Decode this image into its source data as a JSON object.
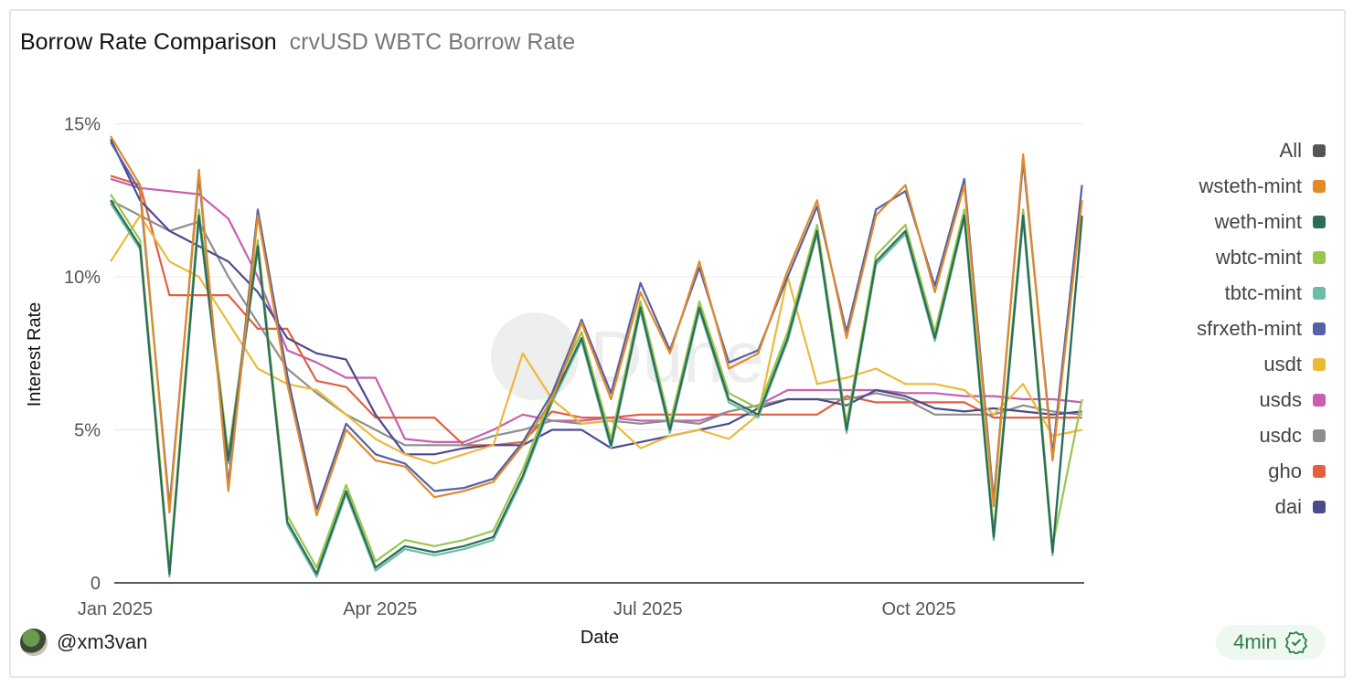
{
  "header": {
    "title": "Borrow Rate Comparison",
    "subtitle": "crvUSD WBTC Borrow Rate"
  },
  "footer": {
    "author": "@xm3van",
    "refresh": "4min"
  },
  "chart_data": {
    "type": "line",
    "xlabel": "Date",
    "ylabel": "Interest Rate",
    "x_start": "2025-01-01",
    "x_step_days": 10,
    "x_ticks": [
      {
        "label": "Jan 2025",
        "day": 0
      },
      {
        "label": "Apr 2025",
        "day": 90
      },
      {
        "label": "Jul 2025",
        "day": 181
      },
      {
        "label": "Oct 2025",
        "day": 273
      }
    ],
    "y_ticks": [
      {
        "label": "0",
        "v": 0
      },
      {
        "label": "5%",
        "v": 5
      },
      {
        "label": "10%",
        "v": 10
      },
      {
        "label": "15%",
        "v": 15
      }
    ],
    "ylim": [
      0,
      15.5
    ],
    "legend_position": "right",
    "legend": [
      {
        "name": "All",
        "color": "#555555"
      },
      {
        "name": "wsteth-mint",
        "color": "#e08a2b"
      },
      {
        "name": "weth-mint",
        "color": "#2d6b5a"
      },
      {
        "name": "wbtc-mint",
        "color": "#97c74a"
      },
      {
        "name": "tbtc-mint",
        "color": "#6bbea3"
      },
      {
        "name": "sfrxeth-mint",
        "color": "#5560a8"
      },
      {
        "name": "usdt",
        "color": "#ecb93a"
      },
      {
        "name": "usds",
        "color": "#c95eb0"
      },
      {
        "name": "usdc",
        "color": "#8e8e8e"
      },
      {
        "name": "gho",
        "color": "#e35f3e"
      },
      {
        "name": "dai",
        "color": "#4b4a8f"
      }
    ],
    "series": [
      {
        "name": "usds",
        "color": "#c95eb0",
        "values": [
          13.2,
          12.9,
          12.8,
          12.7,
          11.9,
          10.0,
          7.6,
          7.2,
          6.7,
          6.7,
          4.7,
          4.6,
          4.6,
          5.0,
          5.5,
          5.3,
          5.3,
          5.4,
          5.3,
          5.3,
          5.3,
          5.6,
          5.8,
          6.3,
          6.3,
          6.3,
          6.3,
          6.2,
          6.2,
          6.1,
          6.1,
          6.0,
          6.0,
          5.9
        ]
      },
      {
        "name": "gho",
        "color": "#e35f3e",
        "values": [
          13.3,
          13.0,
          9.4,
          9.4,
          9.4,
          8.3,
          8.3,
          6.6,
          6.4,
          5.4,
          5.4,
          5.4,
          4.5,
          4.5,
          4.6,
          5.6,
          5.4,
          5.4,
          5.5,
          5.5,
          5.5,
          5.5,
          5.5,
          5.5,
          5.5,
          6.1,
          5.9,
          5.9,
          5.9,
          5.9,
          5.4,
          5.4,
          5.4,
          5.4
        ]
      },
      {
        "name": "usdc",
        "color": "#8e8e8e",
        "values": [
          12.5,
          12.0,
          11.5,
          11.8,
          10.0,
          8.5,
          7.0,
          6.2,
          5.5,
          5.0,
          4.5,
          4.5,
          4.5,
          4.8,
          5.0,
          5.3,
          5.2,
          5.3,
          5.2,
          5.3,
          5.2,
          5.6,
          5.8,
          6.0,
          6.0,
          6.0,
          6.2,
          6.0,
          5.5,
          5.5,
          5.5,
          5.8,
          5.6,
          5.5
        ]
      },
      {
        "name": "dai",
        "color": "#4b4a8f",
        "values": [
          14.5,
          12.5,
          11.5,
          11.0,
          10.5,
          9.5,
          8.0,
          7.5,
          7.3,
          5.5,
          4.2,
          4.2,
          4.4,
          4.5,
          4.5,
          5.0,
          5.0,
          4.4,
          4.6,
          4.8,
          5.0,
          5.2,
          5.7,
          6.0,
          6.0,
          5.8,
          6.3,
          6.1,
          5.7,
          5.6,
          5.7,
          5.6,
          5.5,
          5.6
        ]
      },
      {
        "name": "usdt",
        "color": "#ecb93a",
        "values": [
          10.5,
          12.0,
          10.5,
          10.0,
          8.5,
          7.0,
          6.5,
          6.3,
          5.5,
          4.7,
          4.2,
          3.9,
          4.2,
          4.5,
          7.5,
          6.0,
          5.2,
          5.3,
          4.4,
          4.8,
          5.0,
          4.7,
          5.5,
          10.0,
          6.5,
          6.7,
          7.0,
          6.5,
          6.5,
          6.3,
          5.5,
          6.5,
          4.8,
          5.0
        ]
      },
      {
        "name": "tbtc-mint",
        "color": "#6bbea3",
        "values": [
          12.4,
          10.9,
          0.2,
          11.9,
          3.9,
          10.9,
          1.9,
          0.2,
          2.9,
          0.4,
          1.1,
          0.9,
          1.1,
          1.4,
          3.4,
          5.9,
          7.9,
          4.4,
          8.9,
          4.9,
          8.9,
          5.9,
          5.4,
          7.9,
          11.4,
          4.9,
          10.4,
          11.4,
          7.9,
          11.9,
          1.4,
          11.9,
          0.9,
          11.9
        ]
      },
      {
        "name": "wbtc-mint",
        "color": "#97c74a",
        "values": [
          12.7,
          11.2,
          0.5,
          12.2,
          4.2,
          11.2,
          2.2,
          0.5,
          3.2,
          0.7,
          1.4,
          1.2,
          1.4,
          1.7,
          3.7,
          6.2,
          8.2,
          4.7,
          9.2,
          5.2,
          9.2,
          6.2,
          5.7,
          8.2,
          11.7,
          5.2,
          10.7,
          11.7,
          8.2,
          12.2,
          1.7,
          12.2,
          1.2,
          6.0
        ]
      },
      {
        "name": "weth-mint",
        "color": "#2d6b5a",
        "values": [
          12.5,
          11.0,
          0.3,
          12.0,
          4.0,
          11.0,
          2.0,
          0.3,
          3.0,
          0.5,
          1.2,
          1.0,
          1.2,
          1.5,
          3.5,
          6.0,
          8.0,
          4.5,
          9.0,
          5.0,
          9.0,
          6.0,
          5.5,
          8.0,
          11.5,
          5.0,
          10.5,
          11.5,
          8.0,
          12.0,
          1.5,
          12.0,
          1.0,
          12.0
        ]
      },
      {
        "name": "sfrxeth-mint",
        "color": "#5560a8",
        "values": [
          14.4,
          12.8,
          2.5,
          13.3,
          3.2,
          12.2,
          6.8,
          2.4,
          5.2,
          4.2,
          3.9,
          3.0,
          3.1,
          3.4,
          4.6,
          6.2,
          8.6,
          6.2,
          9.8,
          7.6,
          10.3,
          7.2,
          7.6,
          10.0,
          12.3,
          8.2,
          12.2,
          12.8,
          9.7,
          13.2,
          2.7,
          13.8,
          4.2,
          13.0
        ]
      },
      {
        "name": "wsteth-mint",
        "color": "#e08a2b",
        "values": [
          14.6,
          13.0,
          2.3,
          13.5,
          3.0,
          12.0,
          6.5,
          2.2,
          5.0,
          4.0,
          3.8,
          2.8,
          3.0,
          3.3,
          4.5,
          6.0,
          8.5,
          6.0,
          9.5,
          7.5,
          10.5,
          7.0,
          7.5,
          10.2,
          12.5,
          8.0,
          12.0,
          13.0,
          9.5,
          13.0,
          2.5,
          14.0,
          4.0,
          12.5
        ]
      }
    ]
  }
}
